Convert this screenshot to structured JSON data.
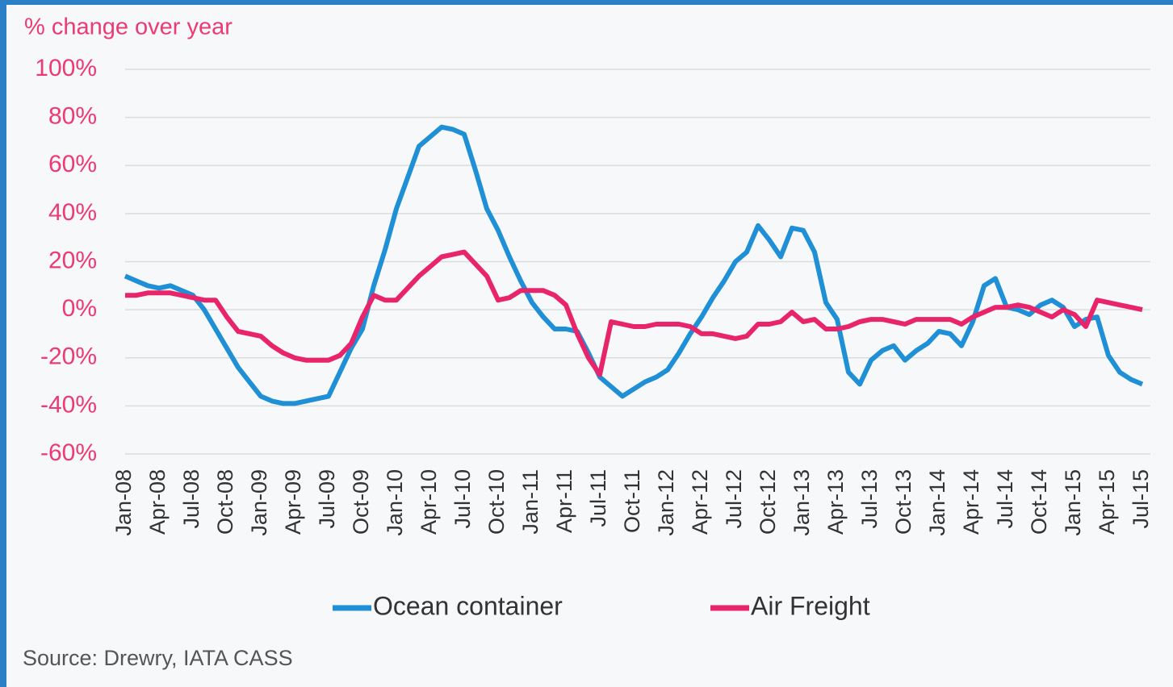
{
  "chart_data": {
    "type": "line",
    "y_axis_label": "% change over year",
    "source": "Source: Drewry, IATA CASS",
    "categories": [
      "Jan-08",
      null,
      null,
      "Apr-08",
      null,
      null,
      "Jul-08",
      null,
      null,
      "Oct-08",
      null,
      null,
      "Jan-09",
      null,
      null,
      "Apr-09",
      null,
      null,
      "Jul-09",
      null,
      null,
      "Oct-09",
      null,
      null,
      "Jan-10",
      null,
      null,
      "Apr-10",
      null,
      null,
      "Jul-10",
      null,
      null,
      "Oct-10",
      null,
      null,
      "Jan-11",
      null,
      null,
      "Apr-11",
      null,
      null,
      "Jul-11",
      null,
      null,
      "Oct-11",
      null,
      null,
      "Jan-12",
      null,
      null,
      "Apr-12",
      null,
      null,
      "Jul-12",
      null,
      null,
      "Oct-12",
      null,
      null,
      "Jan-13",
      null,
      null,
      "Apr-13",
      null,
      null,
      "Jul-13",
      null,
      null,
      "Oct-13",
      null,
      null,
      "Jan-14",
      null,
      null,
      "Apr-14",
      null,
      null,
      "Jul-14",
      null,
      null,
      "Oct-14",
      null,
      null,
      "Jan-15",
      null,
      null,
      "Apr-15",
      null,
      null,
      "Jul-15"
    ],
    "series": [
      {
        "name": "Ocean container",
        "color": "#1f8fd6",
        "values": [
          14,
          12,
          10,
          9,
          10,
          8,
          6,
          0,
          -8,
          -16,
          -24,
          -30,
          -36,
          -38,
          -39,
          -39,
          -38,
          -37,
          -36,
          -26,
          -16,
          -8,
          10,
          25,
          42,
          55,
          68,
          72,
          76,
          75,
          73,
          58,
          42,
          33,
          22,
          12,
          3,
          -3,
          -8,
          -8,
          -9,
          -18,
          -28,
          -32,
          -36,
          -33,
          -30,
          -28,
          -25,
          -18,
          -10,
          -3,
          5,
          12,
          20,
          24,
          35,
          29,
          22,
          34,
          33,
          24,
          3,
          -4,
          -26,
          -31,
          -21,
          -17,
          -15,
          -21,
          -17,
          -14,
          -9,
          -10,
          -15,
          -5,
          10,
          13,
          1,
          0,
          -2,
          2,
          4,
          1,
          -7,
          -4,
          -3,
          -19,
          -26,
          -29,
          -31
        ]
      },
      {
        "name": "Air Freight",
        "color": "#e8246a",
        "values": [
          6,
          6,
          7,
          7,
          7,
          6,
          5,
          4,
          4,
          -3,
          -9,
          -10,
          -11,
          -15,
          -18,
          -20,
          -21,
          -21,
          -21,
          -19,
          -14,
          -3,
          6,
          4,
          4,
          9,
          14,
          18,
          22,
          23,
          24,
          19,
          14,
          4,
          5,
          8,
          8,
          8,
          6,
          2,
          -10,
          -20,
          -27,
          -5,
          -6,
          -7,
          -7,
          -6,
          -6,
          -6,
          -7,
          -10,
          -10,
          -11,
          -12,
          -11,
          -6,
          -6,
          -5,
          -1,
          -5,
          -4,
          -8,
          -8,
          -7,
          -5,
          -4,
          -4,
          -5,
          -6,
          -4,
          -4,
          -4,
          -4,
          -6,
          -3,
          -1,
          1,
          1,
          2,
          1,
          -1,
          -3,
          0,
          -2,
          -7,
          4,
          3,
          2,
          1,
          0
        ]
      }
    ],
    "ylim": [
      -60,
      100
    ],
    "yticks": [
      {
        "value": -60,
        "label": "-60%"
      },
      {
        "value": -40,
        "label": "-40%"
      },
      {
        "value": -20,
        "label": "-20%"
      },
      {
        "value": 0,
        "label": "0%"
      },
      {
        "value": 20,
        "label": "20%"
      },
      {
        "value": 40,
        "label": "40%"
      },
      {
        "value": 60,
        "label": "60%"
      },
      {
        "value": 80,
        "label": "80%"
      },
      {
        "value": 100,
        "label": "100%"
      }
    ],
    "grid": true
  }
}
